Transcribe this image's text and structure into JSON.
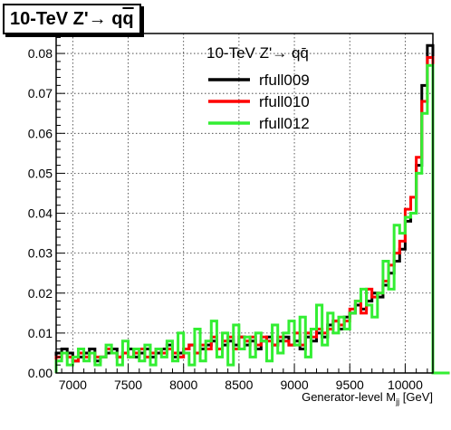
{
  "chart_data": {
    "type": "line",
    "title_parts": {
      "prefix": "10-TeV Z'",
      "arrow": "→",
      "q": "q",
      "qbar": "q"
    },
    "legend_title": "10-TeV Z'→ qq̄",
    "xlabel_main": "Generator-level M",
    "xlabel_sub": "jj",
    "xlabel_unit": " [GeV]",
    "xlim": [
      6850,
      10250
    ],
    "ylim": [
      0,
      0.085
    ],
    "xticks": [
      7000,
      7500,
      8000,
      8500,
      9000,
      9500,
      10000
    ],
    "yticks": [
      0,
      0.01,
      0.02,
      0.03,
      0.04,
      0.05,
      0.06,
      0.07,
      0.08
    ],
    "ytick_labels": [
      "0.00",
      "0.01",
      "0.02",
      "0.03",
      "0.04",
      "0.05",
      "0.06",
      "0.07",
      "0.08"
    ],
    "grid": true,
    "legend_position": "top-right",
    "bin_width": 50,
    "series": [
      {
        "name": "rfull009",
        "color": "#000000",
        "values": [
          0.005,
          0.006,
          0.005,
          0.003,
          0.004,
          0.005,
          0.006,
          0.003,
          0.004,
          0.005,
          0.006,
          0.004,
          0.005,
          0.006,
          0.004,
          0.005,
          0.006,
          0.004,
          0.005,
          0.006,
          0.007,
          0.004,
          0.005,
          0.006,
          0.007,
          0.005,
          0.006,
          0.007,
          0.008,
          0.006,
          0.007,
          0.008,
          0.007,
          0.009,
          0.007,
          0.008,
          0.006,
          0.008,
          0.009,
          0.007,
          0.008,
          0.009,
          0.007,
          0.008,
          0.006,
          0.009,
          0.008,
          0.01,
          0.009,
          0.012,
          0.013,
          0.011,
          0.014,
          0.015,
          0.017,
          0.016,
          0.018,
          0.02,
          0.019,
          0.022,
          0.025,
          0.028,
          0.031,
          0.038,
          0.04,
          0.052,
          0.072,
          0.082,
          0.0,
          0.0,
          0.0
        ]
      },
      {
        "name": "rfull010",
        "color": "#ff0000",
        "values": [
          0.004,
          0.005,
          0.004,
          0.003,
          0.005,
          0.004,
          0.005,
          0.004,
          0.004,
          0.006,
          0.005,
          0.004,
          0.005,
          0.004,
          0.005,
          0.006,
          0.004,
          0.005,
          0.006,
          0.005,
          0.006,
          0.005,
          0.004,
          0.006,
          0.007,
          0.005,
          0.007,
          0.006,
          0.009,
          0.006,
          0.008,
          0.009,
          0.006,
          0.009,
          0.008,
          0.009,
          0.007,
          0.009,
          0.008,
          0.007,
          0.009,
          0.008,
          0.007,
          0.01,
          0.007,
          0.01,
          0.009,
          0.011,
          0.01,
          0.011,
          0.013,
          0.012,
          0.013,
          0.016,
          0.018,
          0.015,
          0.021,
          0.019,
          0.02,
          0.023,
          0.027,
          0.03,
          0.033,
          0.041,
          0.044,
          0.054,
          0.068,
          0.079,
          0.0,
          0.0,
          0.0
        ]
      },
      {
        "name": "rfull012",
        "color": "#33ee33",
        "values": [
          0.003,
          0.005,
          0.002,
          0.004,
          0.006,
          0.003,
          0.005,
          0.002,
          0.004,
          0.007,
          0.005,
          0.002,
          0.008,
          0.004,
          0.006,
          0.003,
          0.007,
          0.002,
          0.006,
          0.004,
          0.008,
          0.003,
          0.01,
          0.005,
          0.002,
          0.011,
          0.003,
          0.008,
          0.013,
          0.004,
          0.01,
          0.002,
          0.012,
          0.006,
          0.009,
          0.004,
          0.01,
          0.008,
          0.003,
          0.012,
          0.005,
          0.01,
          0.013,
          0.007,
          0.014,
          0.004,
          0.011,
          0.017,
          0.007,
          0.015,
          0.01,
          0.014,
          0.011,
          0.015,
          0.018,
          0.021,
          0.017,
          0.014,
          0.02,
          0.028,
          0.021,
          0.037,
          0.035,
          0.039,
          0.04,
          0.05,
          0.065,
          0.077,
          0.0,
          0.0,
          0.0
        ]
      }
    ]
  }
}
